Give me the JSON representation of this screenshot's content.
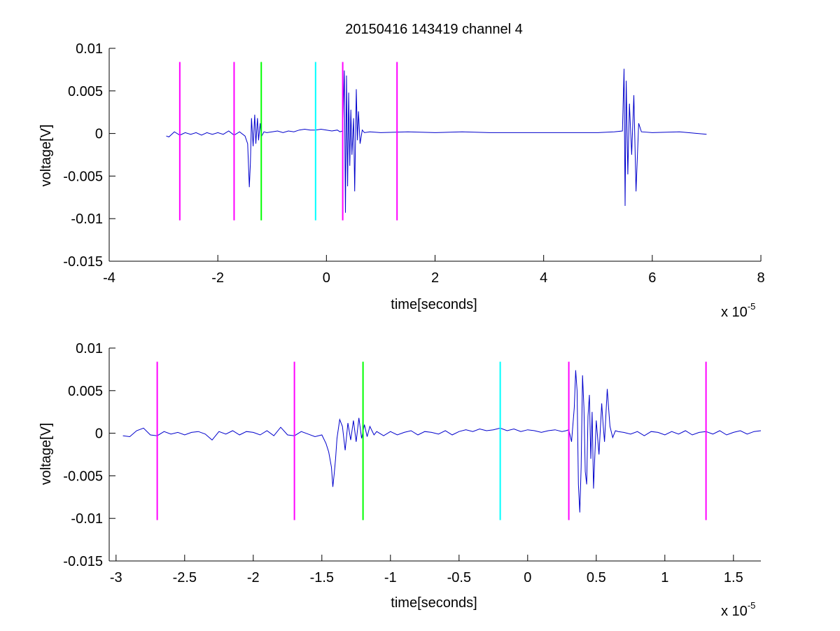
{
  "figure": {
    "title": "20150416 143419 channel 4",
    "background": "#ffffff",
    "trace_color": "#0000cc",
    "colors": {
      "magenta": "#ff00ff",
      "green": "#00ff00",
      "cyan": "#00ffff"
    }
  },
  "chart_data": [
    {
      "type": "line",
      "title": "20150416 143419 channel 4",
      "xlabel": "time[seconds]",
      "ylabel": "voltage[V]",
      "x_exponent_label": "x 10",
      "x_exponent_power": "-5",
      "xlim": [
        -4,
        8
      ],
      "ylim": [
        -0.015,
        0.01
      ],
      "x_unit_scale": 1e-05,
      "x_ticks": [
        -4,
        -2,
        0,
        2,
        4,
        6,
        8
      ],
      "x_tick_labels": [
        "-4",
        "-2",
        "0",
        "2",
        "4",
        "6",
        "8"
      ],
      "y_ticks": [
        0.01,
        0.005,
        0,
        -0.005,
        -0.01,
        -0.015
      ],
      "y_tick_labels": [
        "0.01",
        "0.005",
        "0",
        "-0.005",
        "-0.01",
        "-0.015"
      ],
      "grid": false,
      "legend": "none",
      "markers": [
        {
          "x": -2.7,
          "color": "magenta",
          "ymin": -0.0102,
          "ymax": 0.0084
        },
        {
          "x": -1.7,
          "color": "magenta",
          "ymin": -0.0102,
          "ymax": 0.0084
        },
        {
          "x": -1.2,
          "color": "green",
          "ymin": -0.0102,
          "ymax": 0.0084
        },
        {
          "x": -0.2,
          "color": "cyan",
          "ymin": -0.0102,
          "ymax": 0.0084
        },
        {
          "x": 0.3,
          "color": "magenta",
          "ymin": -0.0102,
          "ymax": 0.0084
        },
        {
          "x": 1.3,
          "color": "magenta",
          "ymin": -0.0102,
          "ymax": 0.0084
        }
      ],
      "series": [
        {
          "x": [
            -2.95,
            -2.9,
            -2.8,
            -2.7,
            -2.6,
            -2.5,
            -2.4,
            -2.3,
            -2.2,
            -2.1,
            -2.0,
            -1.9,
            -1.8,
            -1.7,
            -1.6,
            -1.5,
            -1.45,
            -1.42,
            -1.4,
            -1.38,
            -1.35,
            -1.32,
            -1.3,
            -1.27,
            -1.25,
            -1.22,
            -1.2,
            -1.15,
            -1.1,
            -1.0,
            -0.9,
            -0.8,
            -0.7,
            -0.6,
            -0.5,
            -0.4,
            -0.3,
            -0.2,
            -0.1,
            0.0,
            0.1,
            0.2,
            0.25,
            0.3,
            0.33,
            0.35,
            0.37,
            0.39,
            0.41,
            0.43,
            0.45,
            0.47,
            0.5,
            0.52,
            0.55,
            0.57,
            0.59,
            0.62,
            0.66,
            0.7,
            0.8,
            1.0,
            1.5,
            2.0,
            2.5,
            3.0,
            3.5,
            4.0,
            4.5,
            5.0,
            5.3,
            5.45,
            5.48,
            5.5,
            5.52,
            5.55,
            5.58,
            5.62,
            5.66,
            5.7,
            5.75,
            5.8,
            6.0,
            6.5,
            7.0
          ],
          "y": [
            -0.0003,
            -0.0004,
            0.0002,
            -0.0002,
            0.0001,
            -0.0001,
            0.0001,
            -0.0002,
            0.0001,
            -0.0001,
            0.0001,
            -0.0001,
            0.0003,
            -0.0002,
            0.0002,
            -0.0003,
            -0.0012,
            -0.0063,
            -0.0035,
            0.0018,
            -0.0015,
            0.0022,
            -0.0012,
            0.0018,
            -0.0008,
            0.0012,
            -0.0004,
            0.0002,
            0.0001,
            0.0002,
            0.0003,
            0.0001,
            0.0003,
            0.0002,
            0.0004,
            0.0005,
            0.0004,
            0.0004,
            0.0005,
            0.0004,
            0.0003,
            0.0004,
            0.0002,
            0.0003,
            0.0074,
            -0.0093,
            0.0068,
            -0.0062,
            0.0048,
            -0.0038,
            0.0028,
            -0.0025,
            0.0018,
            -0.0068,
            0.0052,
            -0.0008,
            0.0026,
            -0.0012,
            0.0004,
            0.0001,
            0.0002,
            0.0001,
            0.0002,
            0.0001,
            0.0002,
            0.0001,
            0.0001,
            0.0001,
            0.0001,
            0.0001,
            0.0002,
            0.0003,
            0.0076,
            -0.0085,
            0.0062,
            -0.0048,
            0.0035,
            -0.0025,
            0.0045,
            -0.0068,
            0.0012,
            0.0002,
            0.0001,
            0.0002,
            -0.0001
          ]
        }
      ]
    },
    {
      "type": "line",
      "xlabel": "time[seconds]",
      "ylabel": "voltage[V]",
      "x_exponent_label": "x 10",
      "x_exponent_power": "-5",
      "xlim": [
        -3.05,
        1.7
      ],
      "ylim": [
        -0.015,
        0.01
      ],
      "x_unit_scale": 1e-05,
      "x_ticks": [
        -3,
        -2.5,
        -2,
        -1.5,
        -1,
        -0.5,
        0,
        0.5,
        1,
        1.5
      ],
      "x_tick_labels": [
        "-3",
        "-2.5",
        "-2",
        "-1.5",
        "-1",
        "-0.5",
        "0",
        "0.5",
        "1",
        "1.5"
      ],
      "y_ticks": [
        0.01,
        0.005,
        0,
        -0.005,
        -0.01,
        -0.015
      ],
      "y_tick_labels": [
        "0.01",
        "0.005",
        "0",
        "-0.005",
        "-0.01",
        "-0.015"
      ],
      "grid": false,
      "legend": "none",
      "markers": [
        {
          "x": -2.7,
          "color": "magenta",
          "ymin": -0.0102,
          "ymax": 0.0084
        },
        {
          "x": -1.7,
          "color": "magenta",
          "ymin": -0.0102,
          "ymax": 0.0084
        },
        {
          "x": -1.2,
          "color": "green",
          "ymin": -0.0102,
          "ymax": 0.0084
        },
        {
          "x": -0.2,
          "color": "cyan",
          "ymin": -0.0102,
          "ymax": 0.0084
        },
        {
          "x": 0.3,
          "color": "magenta",
          "ymin": -0.0102,
          "ymax": 0.0084
        },
        {
          "x": 1.3,
          "color": "magenta",
          "ymin": -0.0102,
          "ymax": 0.0084
        }
      ],
      "series": [
        {
          "x": [
            -2.95,
            -2.9,
            -2.85,
            -2.8,
            -2.75,
            -2.7,
            -2.65,
            -2.6,
            -2.55,
            -2.5,
            -2.45,
            -2.4,
            -2.35,
            -2.3,
            -2.25,
            -2.2,
            -2.15,
            -2.1,
            -2.05,
            -2.0,
            -1.95,
            -1.9,
            -1.85,
            -1.8,
            -1.75,
            -1.7,
            -1.65,
            -1.6,
            -1.55,
            -1.5,
            -1.47,
            -1.45,
            -1.43,
            -1.42,
            -1.41,
            -1.4,
            -1.39,
            -1.37,
            -1.35,
            -1.33,
            -1.31,
            -1.29,
            -1.27,
            -1.25,
            -1.23,
            -1.21,
            -1.19,
            -1.17,
            -1.15,
            -1.12,
            -1.1,
            -1.05,
            -1.0,
            -0.95,
            -0.9,
            -0.85,
            -0.8,
            -0.75,
            -0.7,
            -0.65,
            -0.6,
            -0.55,
            -0.5,
            -0.45,
            -0.4,
            -0.35,
            -0.3,
            -0.25,
            -0.2,
            -0.15,
            -0.1,
            -0.05,
            0.0,
            0.05,
            0.1,
            0.15,
            0.2,
            0.25,
            0.28,
            0.3,
            0.32,
            0.34,
            0.35,
            0.36,
            0.37,
            0.38,
            0.39,
            0.4,
            0.41,
            0.42,
            0.43,
            0.44,
            0.45,
            0.46,
            0.47,
            0.48,
            0.5,
            0.52,
            0.54,
            0.55,
            0.56,
            0.58,
            0.59,
            0.6,
            0.62,
            0.64,
            0.66,
            0.7,
            0.75,
            0.8,
            0.85,
            0.9,
            0.95,
            1.0,
            1.05,
            1.1,
            1.15,
            1.2,
            1.25,
            1.3,
            1.35,
            1.4,
            1.45,
            1.5,
            1.55,
            1.6,
            1.65,
            1.7
          ],
          "y": [
            -0.0003,
            -0.0004,
            0.0003,
            0.0006,
            -0.0002,
            -0.0003,
            0.0002,
            -0.0001,
            0.0001,
            -0.0002,
            0.0001,
            0.0002,
            -0.0001,
            -0.0008,
            0.0002,
            -0.0001,
            0.0003,
            -0.0002,
            0.0002,
            0.0001,
            -0.0002,
            0.0003,
            -0.0003,
            0.0007,
            -0.0002,
            -0.0003,
            0.0002,
            -0.0001,
            -0.0004,
            -0.0002,
            -0.0012,
            -0.0022,
            -0.004,
            -0.0063,
            -0.0048,
            -0.003,
            -0.0006,
            0.0016,
            0.0008,
            -0.002,
            0.0012,
            -0.0008,
            0.0015,
            -0.001,
            0.0018,
            -0.0006,
            0.001,
            -0.0004,
            0.0008,
            -0.0002,
            0.0002,
            -0.0003,
            0.0002,
            -0.0002,
            0.0001,
            0.0003,
            -0.0002,
            0.0002,
            0.0001,
            -0.0001,
            0.0003,
            -0.0002,
            0.0002,
            0.0004,
            0.0002,
            0.0005,
            0.0003,
            0.0004,
            0.0006,
            0.0003,
            0.0005,
            0.0002,
            0.0004,
            0.0003,
            0.0001,
            0.0003,
            0.0004,
            0.0002,
            0.0003,
            0.0004,
            -0.001,
            0.003,
            0.0074,
            0.005,
            -0.006,
            -0.0093,
            -0.004,
            0.0068,
            0.003,
            -0.0045,
            -0.006,
            0.002,
            0.0045,
            -0.003,
            0.0025,
            -0.0065,
            0.0015,
            -0.0025,
            0.0035,
            0.001,
            -0.001,
            0.0052,
            0.003,
            0.0008,
            -0.0005,
            0.0003,
            0.0002,
            0.0001,
            -0.0001,
            0.0002,
            -0.0003,
            0.0002,
            0.0001,
            -0.0002,
            0.0002,
            -0.0001,
            0.0003,
            -0.0002,
            0.0001,
            0.0002,
            -0.0001,
            0.0003,
            -0.0002,
            0.0001,
            0.0003,
            -0.0001,
            0.0002,
            0.0003
          ]
        }
      ]
    }
  ]
}
